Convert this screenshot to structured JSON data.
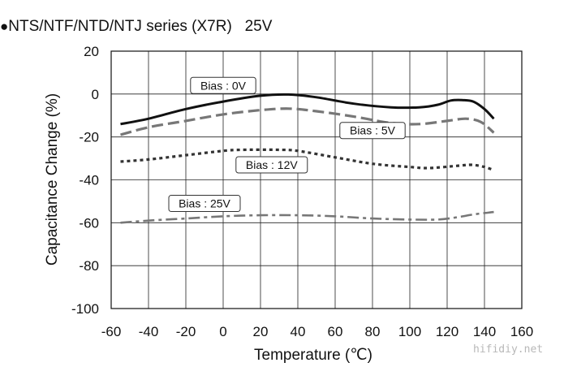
{
  "chart_data": {
    "type": "line",
    "title": "NTS/NTF/NTD/NTJ series (X7R)   25V",
    "title_marker": "●",
    "xlabel": "Temperature (℃)",
    "ylabel": "Capacitance Change (%)",
    "xlim": [
      -60,
      160
    ],
    "ylim": [
      -100,
      20
    ],
    "xticks": [
      -60,
      -40,
      -20,
      0,
      20,
      40,
      60,
      80,
      100,
      120,
      140,
      160
    ],
    "yticks": [
      20,
      0,
      -20,
      -40,
      -60,
      -80,
      -100
    ],
    "grid": true,
    "series": [
      {
        "name": "Bias : 0V",
        "style": "solid",
        "color": "#111111",
        "x": [
          -55,
          -40,
          -20,
          0,
          20,
          35,
          50,
          70,
          90,
          105,
          115,
          122,
          128,
          134,
          140,
          145
        ],
        "y": [
          -14,
          -11.5,
          -7,
          -3.5,
          -0.8,
          -0.2,
          -1.5,
          -4.5,
          -6.2,
          -6.2,
          -5,
          -3,
          -2.8,
          -3.5,
          -7,
          -11.5
        ]
      },
      {
        "name": "Bias : 5V",
        "style": "dashed",
        "color": "#777777",
        "x": [
          -55,
          -40,
          -20,
          0,
          20,
          35,
          50,
          70,
          90,
          105,
          120,
          130,
          138,
          145
        ],
        "y": [
          -19,
          -15.5,
          -12.5,
          -9.5,
          -7.5,
          -6.8,
          -8,
          -10.5,
          -13.5,
          -14,
          -12.5,
          -11.5,
          -13,
          -18
        ]
      },
      {
        "name": "Bias : 12V",
        "style": "dotted",
        "color": "#333333",
        "x": [
          -55,
          -40,
          -20,
          0,
          10,
          30,
          40,
          60,
          80,
          100,
          110,
          125,
          133,
          140,
          145
        ],
        "y": [
          -31.5,
          -30.5,
          -28.5,
          -26.5,
          -26,
          -26,
          -26.5,
          -29.5,
          -32.5,
          -34,
          -34.5,
          -33.5,
          -33,
          -34,
          -35.5
        ]
      },
      {
        "name": "Bias : 25V",
        "style": "dashdot",
        "color": "#777777",
        "x": [
          -55,
          -40,
          -20,
          0,
          20,
          40,
          60,
          80,
          100,
          115,
          125,
          135,
          145
        ],
        "y": [
          -60,
          -59,
          -58,
          -57,
          -56.5,
          -56.5,
          -57,
          -58,
          -58.5,
          -58.5,
          -57.5,
          -56,
          -55
        ]
      }
    ],
    "annotations": [
      {
        "text": "Bias : 0V",
        "series": 0,
        "at_x": 0,
        "at_y": 4
      },
      {
        "text": "Bias : 5V",
        "series": 1,
        "at_x": 80,
        "at_y": -17
      },
      {
        "text": "Bias : 12V",
        "series": 2,
        "at_x": 26,
        "at_y": -33
      },
      {
        "text": "Bias : 25V",
        "series": 3,
        "at_x": -10,
        "at_y": -51
      }
    ]
  },
  "watermark": "hifidiy.net"
}
